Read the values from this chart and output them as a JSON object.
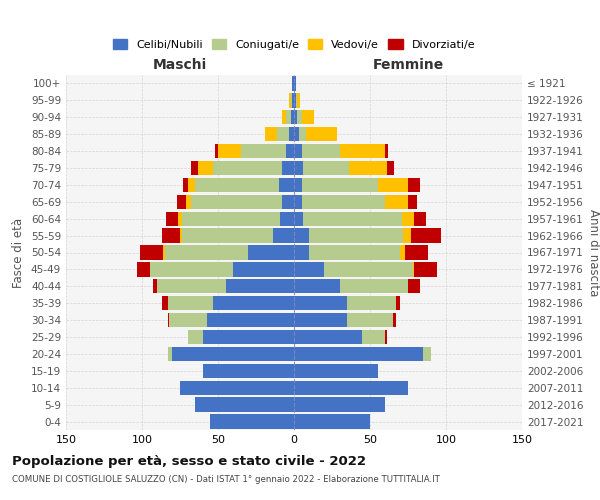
{
  "age_groups": [
    "0-4",
    "5-9",
    "10-14",
    "15-19",
    "20-24",
    "25-29",
    "30-34",
    "35-39",
    "40-44",
    "45-49",
    "50-54",
    "55-59",
    "60-64",
    "65-69",
    "70-74",
    "75-79",
    "80-84",
    "85-89",
    "90-94",
    "95-99",
    "100+"
  ],
  "birth_years": [
    "2017-2021",
    "2012-2016",
    "2007-2011",
    "2002-2006",
    "1997-2001",
    "1992-1996",
    "1987-1991",
    "1982-1986",
    "1977-1981",
    "1972-1976",
    "1967-1971",
    "1962-1966",
    "1957-1961",
    "1952-1956",
    "1947-1951",
    "1942-1946",
    "1937-1941",
    "1932-1936",
    "1927-1931",
    "1922-1926",
    "≤ 1921"
  ],
  "males": {
    "celibi": [
      55,
      65,
      75,
      60,
      80,
      60,
      57,
      53,
      45,
      40,
      30,
      14,
      9,
      8,
      10,
      8,
      5,
      3,
      2,
      1,
      1
    ],
    "coniugati": [
      0,
      0,
      0,
      0,
      3,
      10,
      25,
      30,
      45,
      55,
      55,
      60,
      65,
      60,
      55,
      45,
      30,
      8,
      3,
      1,
      0
    ],
    "vedovi": [
      0,
      0,
      0,
      0,
      0,
      0,
      0,
      0,
      0,
      0,
      1,
      1,
      2,
      3,
      5,
      10,
      15,
      8,
      3,
      1,
      0
    ],
    "divorziati": [
      0,
      0,
      0,
      0,
      0,
      0,
      1,
      4,
      3,
      8,
      15,
      12,
      8,
      6,
      3,
      5,
      2,
      0,
      0,
      0,
      0
    ]
  },
  "females": {
    "nubili": [
      50,
      60,
      75,
      55,
      85,
      45,
      35,
      35,
      30,
      20,
      10,
      10,
      6,
      5,
      5,
      6,
      5,
      3,
      2,
      1,
      1
    ],
    "coniugate": [
      0,
      0,
      0,
      0,
      5,
      15,
      30,
      32,
      45,
      58,
      60,
      62,
      65,
      55,
      50,
      30,
      25,
      5,
      3,
      1,
      0
    ],
    "vedove": [
      0,
      0,
      0,
      0,
      0,
      0,
      0,
      0,
      0,
      1,
      3,
      5,
      8,
      15,
      20,
      25,
      30,
      20,
      8,
      2,
      0
    ],
    "divorziate": [
      0,
      0,
      0,
      0,
      0,
      1,
      2,
      3,
      8,
      15,
      15,
      20,
      8,
      6,
      8,
      5,
      2,
      0,
      0,
      0,
      0
    ]
  },
  "colors": {
    "celibi_nubili": "#4472c4",
    "coniugati": "#b5cc8e",
    "vedovi": "#ffc000",
    "divorziati": "#c00000"
  },
  "title": "Popolazione per età, sesso e stato civile - 2022",
  "subtitle": "COMUNE DI COSTIGLIOLE SALUZZO (CN) - Dati ISTAT 1° gennaio 2022 - Elaborazione TUTTITALIA.IT",
  "xlabel_left": "Maschi",
  "xlabel_right": "Femmine",
  "ylabel_left": "Fasce di età",
  "ylabel_right": "Anni di nascita",
  "xlim": 150,
  "bg_color": "#ffffff",
  "grid_color": "#cccccc"
}
